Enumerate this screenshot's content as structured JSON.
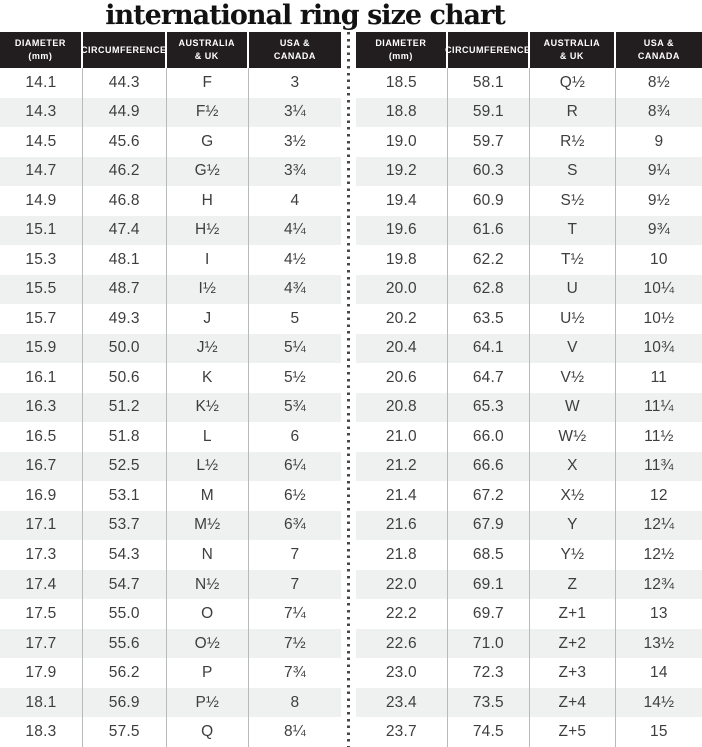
{
  "title": "international ring size chart",
  "colors": {
    "header_bg": "#221e1f",
    "header_text": "#ffffff",
    "row_bg": "#ffffff",
    "row_alt_bg": "#eff1f1",
    "cell_text": "#3e3e3e",
    "grid_line": "#b6bab9",
    "divider_dot": "#474747",
    "title_text": "#121212"
  },
  "chart_data": {
    "type": "table",
    "title": "international ring size chart",
    "columns": [
      "DIAMETER\n(mm)",
      "CIRCUMFERENCE",
      "AUSTRALIA\n& UK",
      "USA &\nCANADA"
    ],
    "left_rows": [
      [
        "14.1",
        "44.3",
        "F",
        "3"
      ],
      [
        "14.3",
        "44.9",
        "F½",
        "3¼"
      ],
      [
        "14.5",
        "45.6",
        "G",
        "3½"
      ],
      [
        "14.7",
        "46.2",
        "G½",
        "3¾"
      ],
      [
        "14.9",
        "46.8",
        "H",
        "4"
      ],
      [
        "15.1",
        "47.4",
        "H½",
        "4¼"
      ],
      [
        "15.3",
        "48.1",
        "I",
        "4½"
      ],
      [
        "15.5",
        "48.7",
        "I½",
        "4¾"
      ],
      [
        "15.7",
        "49.3",
        "J",
        "5"
      ],
      [
        "15.9",
        "50.0",
        "J½",
        "5¼"
      ],
      [
        "16.1",
        "50.6",
        "K",
        "5½"
      ],
      [
        "16.3",
        "51.2",
        "K½",
        "5¾"
      ],
      [
        "16.5",
        "51.8",
        "L",
        "6"
      ],
      [
        "16.7",
        "52.5",
        "L½",
        "6¼"
      ],
      [
        "16.9",
        "53.1",
        "M",
        "6½"
      ],
      [
        "17.1",
        "53.7",
        "M½",
        "6¾"
      ],
      [
        "17.3",
        "54.3",
        "N",
        "7"
      ],
      [
        "17.4",
        "54.7",
        "N½",
        "7"
      ],
      [
        "17.5",
        "55.0",
        "O",
        "7¼"
      ],
      [
        "17.7",
        "55.6",
        "O½",
        "7½"
      ],
      [
        "17.9",
        "56.2",
        "P",
        "7¾"
      ],
      [
        "18.1",
        "56.9",
        "P½",
        "8"
      ],
      [
        "18.3",
        "57.5",
        "Q",
        "8¼"
      ]
    ],
    "right_rows": [
      [
        "18.5",
        "58.1",
        "Q½",
        "8½"
      ],
      [
        "18.8",
        "59.1",
        "R",
        "8¾"
      ],
      [
        "19.0",
        "59.7",
        "R½",
        "9"
      ],
      [
        "19.2",
        "60.3",
        "S",
        "9¼"
      ],
      [
        "19.4",
        "60.9",
        "S½",
        "9½"
      ],
      [
        "19.6",
        "61.6",
        "T",
        "9¾"
      ],
      [
        "19.8",
        "62.2",
        "T½",
        "10"
      ],
      [
        "20.0",
        "62.8",
        "U",
        "10¼"
      ],
      [
        "20.2",
        "63.5",
        "U½",
        "10½"
      ],
      [
        "20.4",
        "64.1",
        "V",
        "10¾"
      ],
      [
        "20.6",
        "64.7",
        "V½",
        "11"
      ],
      [
        "20.8",
        "65.3",
        "W",
        "11¼"
      ],
      [
        "21.0",
        "66.0",
        "W½",
        "11½"
      ],
      [
        "21.2",
        "66.6",
        "X",
        "11¾"
      ],
      [
        "21.4",
        "67.2",
        "X½",
        "12"
      ],
      [
        "21.6",
        "67.9",
        "Y",
        "12¼"
      ],
      [
        "21.8",
        "68.5",
        "Y½",
        "12½"
      ],
      [
        "22.0",
        "69.1",
        "Z",
        "12¾"
      ],
      [
        "22.2",
        "69.7",
        "Z+1",
        "13"
      ],
      [
        "22.6",
        "71.0",
        "Z+2",
        "13½"
      ],
      [
        "23.0",
        "72.3",
        "Z+3",
        "14"
      ],
      [
        "23.4",
        "73.5",
        "Z+4",
        "14½"
      ],
      [
        "23.7",
        "74.5",
        "Z+5",
        "15"
      ]
    ]
  }
}
